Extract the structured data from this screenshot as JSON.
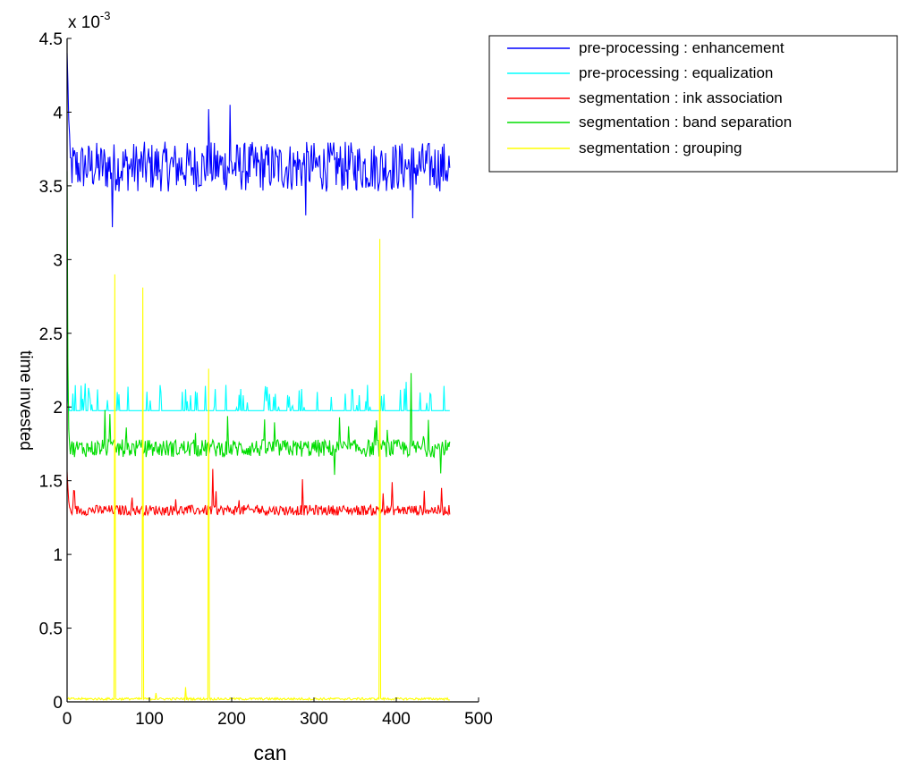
{
  "chart_data": {
    "type": "line",
    "title": "",
    "xlabel": "can",
    "ylabel": "time invested",
    "y_multiplier": "x 10",
    "y_multiplier_exp": "-3",
    "xlim": [
      0,
      500
    ],
    "ylim": [
      0,
      4.5
    ],
    "x_ticks": [
      "0",
      "100",
      "200",
      "300",
      "400",
      "500"
    ],
    "y_ticks": [
      "0",
      "0.5",
      "1",
      "1.5",
      "2",
      "2.5",
      "3",
      "3.5",
      "4",
      "4.5"
    ],
    "grid": false,
    "legend_position": "top-right",
    "n_points": 466,
    "series": [
      {
        "name": "pre-processing : enhancement",
        "color": "#0000ff",
        "start": [
          4.4,
          4.2,
          3.95,
          3.85
        ],
        "baseline": 3.63,
        "jitter": 0.17,
        "spike_prob": 0.0,
        "spikes": [
          [
            55,
            3.22
          ],
          [
            172,
            4.02
          ],
          [
            198,
            4.05
          ],
          [
            290,
            3.3
          ],
          [
            420,
            3.28
          ]
        ]
      },
      {
        "name": "pre-processing : equalization",
        "color": "#00ffff",
        "start": [
          2.35,
          2.05,
          2.0
        ],
        "baseline": 1.975,
        "jitter": 0.0,
        "spike_prob": 0.14,
        "spike_range": [
          0.02,
          0.18
        ],
        "spikes": [
          [
            22,
            2.16
          ],
          [
            144,
            2.12
          ],
          [
            365,
            2.15
          ],
          [
            412,
            2.17
          ]
        ]
      },
      {
        "name": "segmentation : ink association",
        "color": "#ff0000",
        "start": [
          1.56,
          1.45,
          1.36
        ],
        "baseline": 1.3,
        "jitter": 0.035,
        "spike_prob": 0.03,
        "spike_range": [
          0.05,
          0.16
        ],
        "spikes": [
          [
            177,
            1.58
          ],
          [
            286,
            1.51
          ],
          [
            395,
            1.49
          ]
        ]
      },
      {
        "name": "segmentation : band separation",
        "color": "#00dd00",
        "start": [
          3.6,
          2.3,
          1.85,
          1.75
        ],
        "baseline": 1.72,
        "jitter": 0.06,
        "spike_prob": 0.03,
        "spike_range": [
          0.05,
          0.2
        ],
        "spikes": [
          [
            46,
            1.98
          ],
          [
            418,
            2.23
          ],
          [
            325,
            1.54
          ],
          [
            454,
            1.55
          ]
        ]
      },
      {
        "name": "segmentation : grouping",
        "color": "#ffff00",
        "start": [
          0.02,
          0.02
        ],
        "baseline": 0.02,
        "jitter": 0.008,
        "spike_prob": 0.0,
        "spikes": [
          [
            58,
            2.9
          ],
          [
            92,
            2.81
          ],
          [
            172,
            2.26
          ],
          [
            380,
            3.14
          ],
          [
            144,
            0.1
          ],
          [
            108,
            0.06
          ]
        ]
      }
    ]
  }
}
